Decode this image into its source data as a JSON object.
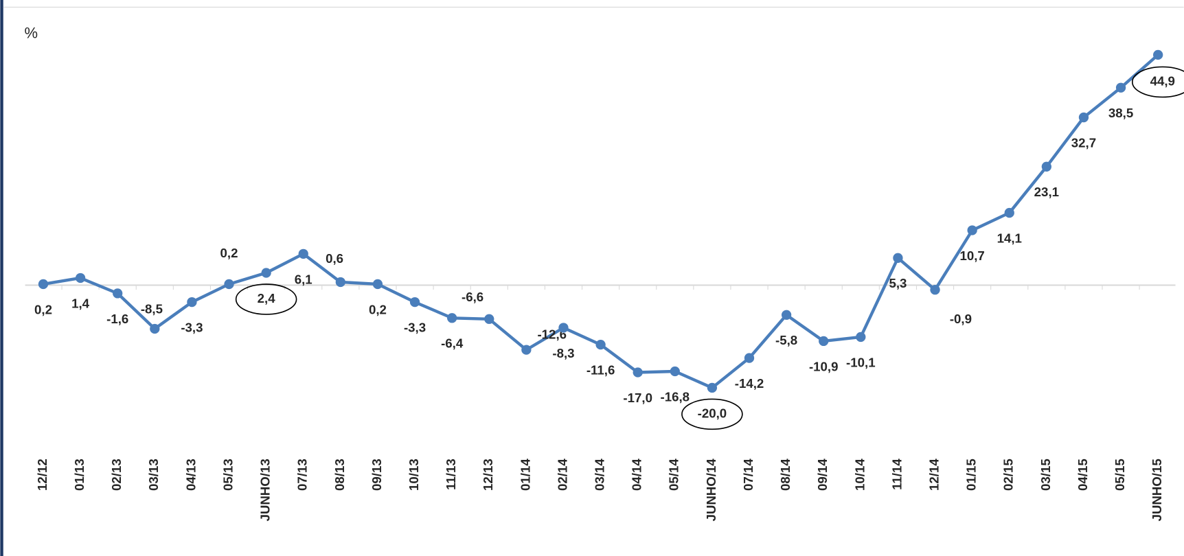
{
  "chart_data": {
    "type": "line",
    "y_label": "%",
    "categories": [
      "12/12",
      "01/13",
      "02/13",
      "03/13",
      "04/13",
      "05/13",
      "JUNHO/13",
      "07/13",
      "08/13",
      "09/13",
      "10/13",
      "11/13",
      "12/13",
      "01/14",
      "02/14",
      "03/14",
      "04/14",
      "05/14",
      "JUNHO/14",
      "07/14",
      "08/14",
      "09/14",
      "10/14",
      "11/14",
      "12/14",
      "01/15",
      "02/15",
      "03/15",
      "04/15",
      "05/15",
      "JUNHO/15"
    ],
    "series": [
      {
        "color": "#4a7ebb",
        "values": [
          0.2,
          1.4,
          -1.6,
          -8.5,
          -3.3,
          0.2,
          2.4,
          6.1,
          0.6,
          0.2,
          -3.3,
          -6.4,
          -6.6,
          -12.6,
          -8.3,
          -11.6,
          -17.0,
          -16.8,
          -20.0,
          -14.2,
          -5.8,
          -10.9,
          -10.1,
          5.3,
          -0.9,
          10.7,
          14.1,
          23.1,
          32.7,
          38.5,
          44.9
        ],
        "value_labels": [
          "0,2",
          "1,4",
          "-1,6",
          "-8,5",
          "-3,3",
          "0,2",
          "2,4",
          "6,1",
          "0,6",
          "0,2",
          "-3,3",
          "-6,4",
          "-6,6",
          "-12,6",
          "-8,3",
          "-11,6",
          "-17,0",
          "-16,8",
          "-20,0",
          "-14,2",
          "-5,8",
          "-10,9",
          "-10,1",
          "5,3",
          "-0,9",
          "10,7",
          "14,1",
          "23,1",
          "32,7",
          "38,5",
          "44,9"
        ]
      }
    ],
    "ylim": [
      -30,
      50
    ]
  }
}
